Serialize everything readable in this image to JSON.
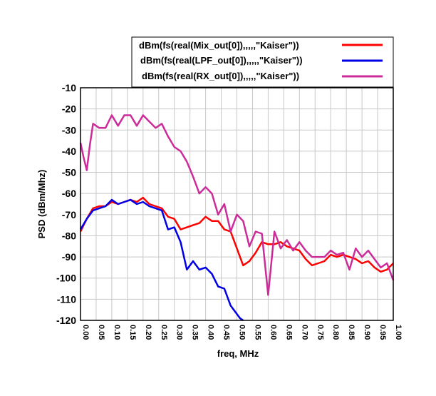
{
  "chart_data": {
    "type": "line",
    "xlabel": "freq, MHz",
    "ylabel": "PSD (dBm/Mhz)",
    "xlim": [
      0.0,
      1.0
    ],
    "ylim": [
      -120,
      -10
    ],
    "x_ticks": [
      "0.00",
      "0.05",
      "0.10",
      "0.15",
      "0.20",
      "0.25",
      "0.30",
      "0.35",
      "0.40",
      "0.45",
      "0.50",
      "0.55",
      "0.60",
      "0.65",
      "0.70",
      "0.75",
      "0.80",
      "0.85",
      "0.90",
      "0.95",
      "1.00"
    ],
    "y_ticks": [
      "-10",
      "-20",
      "-30",
      "-40",
      "-50",
      "-60",
      "-70",
      "-80",
      "-90",
      "-100",
      "-110",
      "-120"
    ],
    "grid": true,
    "legend_position": "top",
    "series": [
      {
        "name": "dBm(fs(real(Mix_out[0]),,,,,\"Kaiser\"))",
        "color": "#ff0000",
        "x": [
          0.0,
          0.02,
          0.04,
          0.06,
          0.08,
          0.1,
          0.12,
          0.14,
          0.16,
          0.18,
          0.2,
          0.22,
          0.24,
          0.26,
          0.28,
          0.3,
          0.32,
          0.34,
          0.36,
          0.38,
          0.4,
          0.42,
          0.44,
          0.46,
          0.48,
          0.5,
          0.52,
          0.54,
          0.56,
          0.58,
          0.6,
          0.62,
          0.64,
          0.66,
          0.68,
          0.7,
          0.72,
          0.74,
          0.76,
          0.78,
          0.8,
          0.82,
          0.84,
          0.86,
          0.88,
          0.9,
          0.92,
          0.94,
          0.96,
          0.98,
          1.0
        ],
        "y": [
          -78,
          -72,
          -67,
          -66,
          -66,
          -64,
          -65,
          -64,
          -63,
          -64,
          -62,
          -65,
          -66,
          -67,
          -71,
          -72,
          -77,
          -76,
          -75,
          -74,
          -71,
          -73,
          -73,
          -77,
          -78,
          -86,
          -94,
          -92,
          -88,
          -83,
          -84,
          -84,
          -83,
          -85,
          -86,
          -87,
          -91,
          -94,
          -93,
          -92,
          -89,
          -90,
          -89,
          -90,
          -91,
          -93,
          -92,
          -95,
          -97,
          -96,
          -93
        ]
      },
      {
        "name": "dBm(fs(real(LPF_out[0]),,,,,\"Kaiser\"))",
        "color": "#0000e6",
        "x": [
          0.0,
          0.02,
          0.04,
          0.06,
          0.08,
          0.1,
          0.12,
          0.14,
          0.16,
          0.18,
          0.2,
          0.22,
          0.24,
          0.26,
          0.28,
          0.3,
          0.32,
          0.34,
          0.36,
          0.38,
          0.4,
          0.42,
          0.44,
          0.46,
          0.48,
          0.5,
          0.51,
          0.52
        ],
        "y": [
          -77,
          -72,
          -68,
          -67,
          -66,
          -63,
          -65,
          -64,
          -63,
          -65,
          -64,
          -66,
          -67,
          -68,
          -77,
          -76,
          -83,
          -96,
          -92,
          -96,
          -95,
          -98,
          -104,
          -105,
          -113,
          -117,
          -119,
          -120
        ]
      },
      {
        "name": "dBm(fs(real(RX_out[0]),,,,,\"Kaiser\"))",
        "color": "#cc2c9a",
        "x": [
          0.0,
          0.01,
          0.02,
          0.03,
          0.04,
          0.05,
          0.06,
          0.07,
          0.08,
          0.1,
          0.12,
          0.14,
          0.16,
          0.18,
          0.2,
          0.22,
          0.24,
          0.26,
          0.28,
          0.3,
          0.32,
          0.34,
          0.36,
          0.38,
          0.4,
          0.42,
          0.44,
          0.46,
          0.48,
          0.5,
          0.52,
          0.54,
          0.56,
          0.58,
          0.6,
          0.62,
          0.64,
          0.66,
          0.68,
          0.7,
          0.72,
          0.74,
          0.76,
          0.78,
          0.8,
          0.82,
          0.84,
          0.86,
          0.88,
          0.9,
          0.92,
          0.94,
          0.96,
          0.98,
          1.0
        ],
        "y": [
          -36,
          -43,
          -49,
          -37,
          -27,
          -28,
          -29,
          -29,
          -29,
          -23,
          -28,
          -23,
          -23,
          -28,
          -23,
          -26,
          -29,
          -27,
          -33,
          -38,
          -40,
          -45,
          -52,
          -60,
          -57,
          -60,
          -70,
          -65,
          -78,
          -70,
          -73,
          -85,
          -78,
          -79,
          -108,
          -78,
          -86,
          -82,
          -87,
          -83,
          -87,
          -90,
          -90,
          -90,
          -87,
          -89,
          -88,
          -96,
          -86,
          -90,
          -87,
          -91,
          -95,
          -93,
          -101
        ]
      }
    ]
  }
}
